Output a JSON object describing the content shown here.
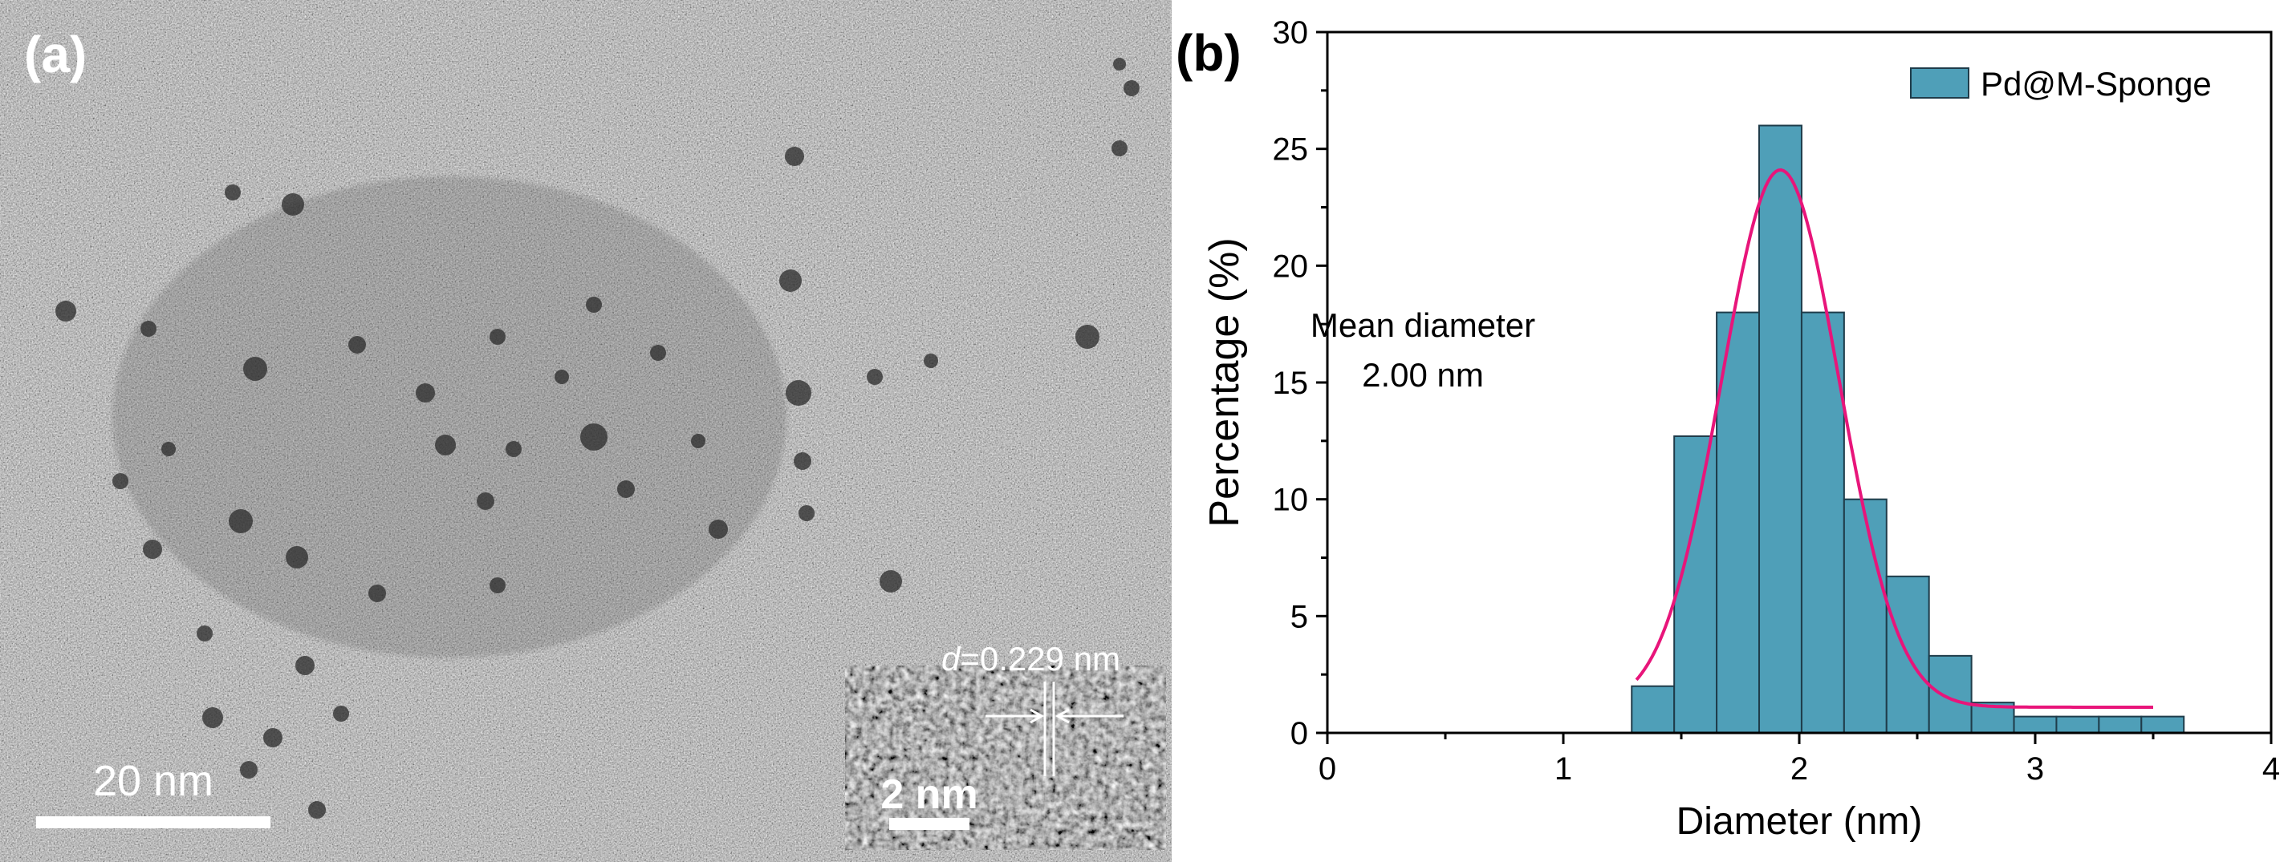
{
  "panel_a": {
    "label": "(a)",
    "scale_bar_label": "20 nm",
    "inset": {
      "scale_bar_label": "2 nm",
      "d_symbol": "d",
      "d_value": "=0.229 nm"
    }
  },
  "panel_b": {
    "label": "(b)",
    "annotation_line1": "Mean diameter",
    "annotation_line2": "2.00 nm"
  },
  "colors": {
    "bar_fill": "#4f9fb8",
    "bar_stroke": "#1f3c4a",
    "fit_curve": "#e8157a",
    "axis": "#000000"
  },
  "chart_data": {
    "type": "bar",
    "title": "",
    "xlabel": "Diameter (nm)",
    "ylabel": "Percentage (%)",
    "xlim": [
      0,
      4
    ],
    "ylim": [
      0,
      30
    ],
    "xticks": [
      0,
      1,
      2,
      3,
      4
    ],
    "yticks": [
      0,
      5,
      10,
      15,
      20,
      25,
      30
    ],
    "bin_width": 0.18,
    "legend": {
      "position": "top-right",
      "entries": [
        "Pd@M-Sponge"
      ]
    },
    "grid": false,
    "series": [
      {
        "name": "Pd@M-Sponge",
        "x": [
          1.38,
          1.56,
          1.74,
          1.92,
          2.1,
          2.28,
          2.46,
          2.64,
          2.82,
          3.0,
          3.18,
          3.36,
          3.54
        ],
        "values": [
          2.0,
          12.7,
          18.0,
          26.0,
          18.0,
          10.0,
          6.7,
          3.3,
          1.3,
          0.7,
          0.7,
          0.7,
          0.7
        ]
      }
    ],
    "fit": {
      "type": "gaussian",
      "x_range": [
        1.31,
        3.5
      ],
      "center": 1.92,
      "sigma": 0.25,
      "amplitude": 23.0,
      "offset": 1.1
    }
  }
}
